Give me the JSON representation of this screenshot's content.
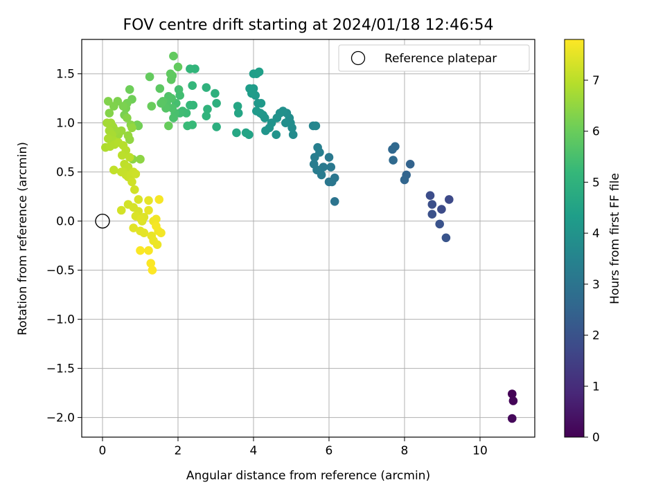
{
  "chart_data": {
    "type": "scatter",
    "title": "FOV centre drift starting at 2024/01/18 12:46:54",
    "xlabel": "Angular distance from reference (arcmin)",
    "ylabel": "Rotation from reference (arcmin)",
    "xlim": [
      -0.55,
      11.45
    ],
    "ylim": [
      -2.2,
      1.85
    ],
    "xticks": [
      0,
      2,
      4,
      6,
      8,
      10
    ],
    "yticks": [
      -2.0,
      -1.5,
      -1.0,
      -0.5,
      0.0,
      0.5,
      1.0,
      1.5
    ],
    "xtick_labels": [
      "0",
      "2",
      "4",
      "6",
      "8",
      "10"
    ],
    "ytick_labels": [
      "−2.0",
      "−1.5",
      "−1.0",
      "−0.5",
      "0.0",
      "0.5",
      "1.0",
      "1.5"
    ],
    "grid": true,
    "legend": {
      "position": "top-right",
      "label": "Reference platepar"
    },
    "reference_point": [
      0,
      0
    ],
    "colorbar": {
      "label": "Hours from first FF file",
      "min": 0,
      "max": 7.8,
      "ticks": [
        0,
        1,
        2,
        3,
        4,
        5,
        6,
        7
      ],
      "tick_labels": [
        "0",
        "1",
        "2",
        "3",
        "4",
        "5",
        "6",
        "7"
      ],
      "colormap": "viridis"
    },
    "points": [
      [
        10.85,
        -1.76,
        0.05
      ],
      [
        10.88,
        -1.83,
        0.1
      ],
      [
        10.85,
        -2.01,
        0.15
      ],
      [
        9.18,
        0.22,
        1.75
      ],
      [
        8.98,
        0.12,
        1.8
      ],
      [
        8.68,
        0.26,
        1.85
      ],
      [
        8.73,
        0.17,
        1.9
      ],
      [
        8.73,
        0.07,
        1.95
      ],
      [
        8.93,
        -0.03,
        2.0
      ],
      [
        9.1,
        -0.17,
        2.05
      ],
      [
        8.15,
        0.58,
        2.45
      ],
      [
        8.05,
        0.47,
        2.5
      ],
      [
        8.0,
        0.42,
        2.55
      ],
      [
        7.68,
        0.73,
        2.6
      ],
      [
        7.75,
        0.76,
        2.62
      ],
      [
        7.7,
        0.62,
        2.65
      ],
      [
        6.15,
        0.2,
        3.0
      ],
      [
        6.15,
        0.44,
        3.05
      ],
      [
        6.08,
        0.4,
        3.08
      ],
      [
        6.0,
        0.4,
        3.1
      ],
      [
        6.05,
        0.55,
        3.12
      ],
      [
        6.0,
        0.65,
        3.15
      ],
      [
        5.85,
        0.55,
        3.18
      ],
      [
        5.75,
        0.52,
        3.2
      ],
      [
        5.8,
        0.47,
        3.22
      ],
      [
        5.68,
        0.52,
        3.25
      ],
      [
        5.6,
        0.58,
        3.28
      ],
      [
        5.62,
        0.65,
        3.3
      ],
      [
        5.75,
        0.7,
        3.32
      ],
      [
        5.7,
        0.75,
        3.35
      ],
      [
        5.58,
        0.97,
        3.55
      ],
      [
        5.65,
        0.97,
        3.58
      ],
      [
        5.05,
        0.88,
        3.75
      ],
      [
        5.02,
        0.95,
        3.78
      ],
      [
        4.98,
        1.0,
        3.8
      ],
      [
        4.95,
        1.05,
        3.82
      ],
      [
        4.88,
        1.1,
        3.85
      ],
      [
        4.85,
        1.0,
        3.87
      ],
      [
        4.78,
        1.12,
        3.9
      ],
      [
        4.7,
        1.1,
        3.92
      ],
      [
        4.62,
        1.05,
        3.95
      ],
      [
        4.6,
        0.88,
        3.98
      ],
      [
        4.48,
        1.0,
        4.0
      ],
      [
        4.42,
        0.95,
        4.02
      ],
      [
        4.32,
        0.92,
        4.05
      ],
      [
        4.3,
        1.05,
        4.08
      ],
      [
        4.25,
        1.08,
        4.1
      ],
      [
        4.18,
        1.1,
        4.12
      ],
      [
        4.12,
        1.2,
        4.15
      ],
      [
        4.2,
        1.2,
        4.17
      ],
      [
        4.08,
        1.12,
        4.2
      ],
      [
        4.05,
        1.28,
        4.22
      ],
      [
        4.0,
        1.35,
        4.25
      ],
      [
        3.95,
        1.3,
        4.27
      ],
      [
        3.9,
        1.35,
        4.3
      ],
      [
        4.0,
        1.5,
        4.32
      ],
      [
        4.08,
        1.5,
        4.35
      ],
      [
        4.15,
        1.52,
        4.37
      ],
      [
        3.88,
        0.88,
        4.5
      ],
      [
        3.8,
        0.9,
        4.53
      ],
      [
        3.6,
        1.1,
        4.56
      ],
      [
        3.58,
        1.17,
        4.6
      ],
      [
        3.55,
        0.9,
        4.63
      ],
      [
        3.02,
        0.96,
        4.9
      ],
      [
        3.02,
        1.2,
        4.93
      ],
      [
        2.98,
        1.3,
        4.96
      ],
      [
        2.75,
        1.36,
        5.0
      ],
      [
        2.78,
        1.14,
        5.03
      ],
      [
        2.75,
        1.07,
        5.06
      ],
      [
        2.45,
        1.55,
        5.1
      ],
      [
        2.32,
        1.55,
        5.12
      ],
      [
        2.38,
        1.38,
        5.15
      ],
      [
        2.4,
        1.18,
        5.18
      ],
      [
        2.32,
        1.18,
        5.2
      ],
      [
        2.38,
        0.98,
        5.23
      ],
      [
        2.25,
        0.97,
        5.26
      ],
      [
        2.22,
        1.1,
        5.3
      ],
      [
        2.12,
        1.12,
        5.33
      ],
      [
        2.05,
        1.1,
        5.36
      ],
      [
        2.05,
        1.28,
        5.4
      ],
      [
        2.02,
        1.34,
        5.43
      ],
      [
        1.95,
        1.2,
        5.46
      ],
      [
        1.92,
        1.1,
        5.5
      ],
      [
        1.88,
        1.05,
        5.53
      ],
      [
        1.85,
        1.15,
        5.56
      ],
      [
        1.83,
        1.25,
        5.6
      ],
      [
        1.75,
        1.27,
        5.63
      ],
      [
        1.7,
        1.2,
        5.66
      ],
      [
        1.68,
        1.15,
        5.7
      ],
      [
        1.6,
        1.22,
        5.73
      ],
      [
        1.55,
        1.2,
        5.76
      ],
      [
        1.52,
        1.35,
        5.8
      ],
      [
        1.82,
        1.44,
        5.82
      ],
      [
        1.85,
        1.48,
        5.84
      ],
      [
        1.8,
        1.5,
        5.86
      ],
      [
        1.88,
        1.68,
        5.88
      ],
      [
        2.0,
        1.57,
        5.9
      ],
      [
        1.25,
        1.47,
        5.92
      ],
      [
        1.75,
        0.97,
        5.95
      ],
      [
        1.3,
        1.17,
        5.98
      ],
      [
        0.72,
        1.34,
        6.05
      ],
      [
        0.78,
        1.24,
        6.08
      ],
      [
        0.95,
        0.97,
        6.1
      ],
      [
        0.92,
        0.98,
        6.12
      ],
      [
        0.65,
        1.2,
        6.15
      ],
      [
        0.62,
        1.15,
        6.18
      ],
      [
        0.58,
        1.08,
        6.2
      ],
      [
        0.55,
        1.17,
        6.22
      ],
      [
        0.4,
        1.22,
        6.25
      ],
      [
        0.3,
        1.17,
        6.28
      ],
      [
        0.15,
        1.22,
        6.3
      ],
      [
        0.18,
        1.1,
        6.33
      ],
      [
        0.65,
        1.05,
        6.36
      ],
      [
        0.75,
        0.98,
        6.4
      ],
      [
        0.8,
        0.63,
        6.43
      ],
      [
        1.0,
        0.63,
        6.46
      ],
      [
        0.72,
        0.83,
        6.5
      ],
      [
        0.78,
        0.95,
        6.53
      ],
      [
        0.68,
        0.87,
        6.56
      ],
      [
        0.5,
        0.92,
        6.6
      ],
      [
        0.42,
        0.88,
        6.62
      ],
      [
        0.35,
        0.92,
        6.65
      ],
      [
        0.28,
        0.96,
        6.68
      ],
      [
        0.22,
        1.0,
        6.7
      ],
      [
        0.12,
        1.0,
        6.72
      ],
      [
        0.18,
        0.92,
        6.75
      ],
      [
        0.25,
        0.88,
        6.78
      ],
      [
        0.3,
        0.82,
        6.8
      ],
      [
        0.15,
        0.84,
        6.82
      ],
      [
        0.08,
        0.75,
        6.85
      ],
      [
        0.2,
        0.76,
        6.87
      ],
      [
        0.32,
        0.78,
        6.9
      ],
      [
        0.42,
        0.8,
        6.92
      ],
      [
        0.55,
        0.77,
        6.95
      ],
      [
        0.62,
        0.72,
        6.97
      ],
      [
        0.52,
        0.67,
        7.0
      ],
      [
        0.72,
        0.65,
        7.02
      ],
      [
        0.58,
        0.58,
        7.04
      ],
      [
        0.68,
        0.55,
        7.06
      ],
      [
        0.3,
        0.52,
        7.08
      ],
      [
        0.5,
        0.5,
        7.1
      ],
      [
        0.55,
        0.5,
        7.12
      ],
      [
        0.62,
        0.47,
        7.14
      ],
      [
        0.68,
        0.45,
        7.16
      ],
      [
        0.75,
        0.47,
        7.18
      ],
      [
        0.82,
        0.5,
        7.2
      ],
      [
        0.88,
        0.48,
        7.22
      ],
      [
        0.78,
        0.4,
        7.24
      ],
      [
        0.85,
        0.32,
        7.26
      ],
      [
        0.68,
        0.17,
        7.28
      ],
      [
        0.5,
        0.11,
        7.3
      ],
      [
        0.82,
        0.14,
        7.32
      ],
      [
        0.95,
        0.1,
        7.34
      ],
      [
        0.95,
        0.22,
        7.36
      ],
      [
        0.88,
        0.05,
        7.38
      ],
      [
        1.05,
        0.0,
        7.4
      ],
      [
        1.1,
        0.04,
        7.42
      ],
      [
        1.02,
        0.02,
        7.44
      ],
      [
        0.82,
        -0.07,
        7.46
      ],
      [
        1.0,
        -0.1,
        7.48
      ],
      [
        1.1,
        -0.12,
        7.5
      ],
      [
        1.22,
        0.21,
        7.52
      ],
      [
        1.22,
        0.11,
        7.54
      ],
      [
        1.3,
        -0.15,
        7.56
      ],
      [
        1.35,
        -0.2,
        7.58
      ],
      [
        1.45,
        -0.24,
        7.6
      ],
      [
        1.35,
        0.0,
        7.62
      ],
      [
        1.42,
        0.02,
        7.64
      ],
      [
        1.48,
        -0.1,
        7.66
      ],
      [
        1.55,
        -0.12,
        7.68
      ],
      [
        1.42,
        -0.05,
        7.7
      ],
      [
        1.5,
        0.22,
        7.72
      ],
      [
        1.22,
        -0.3,
        7.74
      ],
      [
        1.0,
        -0.3,
        7.76
      ],
      [
        1.28,
        -0.43,
        7.78
      ],
      [
        1.32,
        -0.5,
        7.8
      ]
    ]
  }
}
